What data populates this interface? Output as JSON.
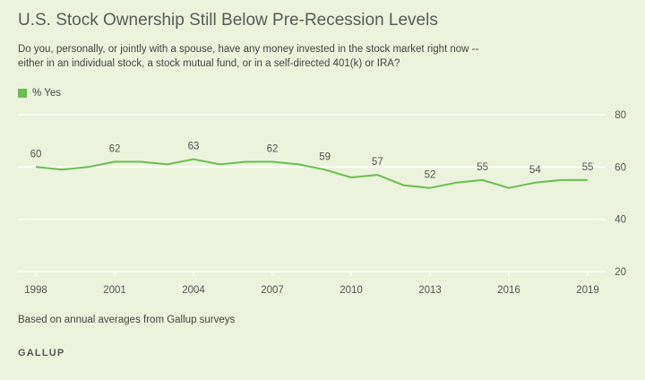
{
  "header": {
    "title": "U.S. Stock Ownership Still Below Pre-Recession Levels",
    "subtitle_line1": "Do you, personally, or jointly with a spouse, have any money invested in the stock market right now --",
    "subtitle_line2": "either in an individual stock, a stock mutual fund, or in a self-directed 401(k) or IRA?"
  },
  "footer": {
    "note": "Based on annual averages from Gallup surveys",
    "brand": "GALLUP"
  },
  "colors": {
    "line": "#6bbd4f",
    "background": "#ebf3dc",
    "grid": "#ffffff"
  },
  "chart_data": {
    "type": "line",
    "title": "U.S. Stock Ownership Still Below Pre-Recession Levels",
    "xlabel": "",
    "ylabel": "",
    "legend": "top-left",
    "grid": true,
    "ylim": [
      20,
      80
    ],
    "xlim": [
      1998,
      2019
    ],
    "yticks": [
      20,
      40,
      60,
      80
    ],
    "xticks": [
      1998,
      2001,
      2004,
      2007,
      2010,
      2013,
      2016,
      2019
    ],
    "series": [
      {
        "name": "% Yes",
        "x": [
          1998,
          1999,
          2000,
          2001,
          2002,
          2003,
          2004,
          2005,
          2006,
          2007,
          2008,
          2009,
          2010,
          2011,
          2012,
          2013,
          2014,
          2015,
          2016,
          2017,
          2018,
          2019
        ],
        "values": [
          60,
          59,
          60,
          62,
          62,
          61,
          63,
          61,
          62,
          62,
          61,
          59,
          56,
          57,
          53,
          52,
          54,
          55,
          52,
          54,
          55,
          55
        ]
      }
    ],
    "data_labels": [
      {
        "x": 1998,
        "value": 60,
        "text": "60"
      },
      {
        "x": 2001,
        "value": 62,
        "text": "62"
      },
      {
        "x": 2004,
        "value": 63,
        "text": "63"
      },
      {
        "x": 2007,
        "value": 62,
        "text": "62"
      },
      {
        "x": 2009,
        "value": 59,
        "text": "59"
      },
      {
        "x": 2011,
        "value": 57,
        "text": "57"
      },
      {
        "x": 2013,
        "value": 52,
        "text": "52"
      },
      {
        "x": 2015,
        "value": 55,
        "text": "55"
      },
      {
        "x": 2017,
        "value": 54,
        "text": "54"
      },
      {
        "x": 2019,
        "value": 55,
        "text": "55"
      }
    ]
  }
}
